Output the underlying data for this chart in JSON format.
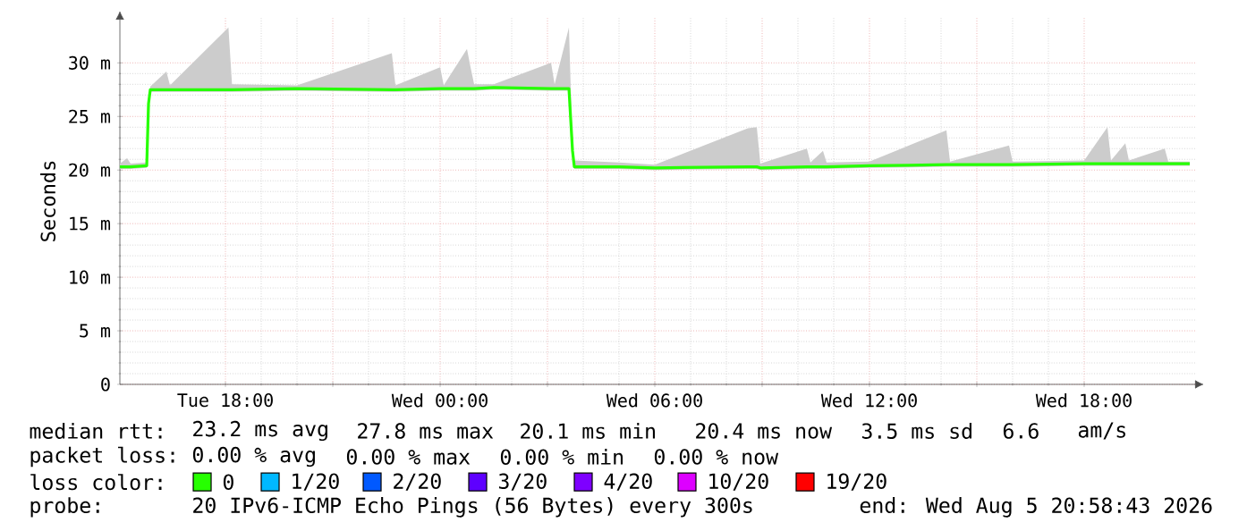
{
  "chart_data": {
    "type": "line",
    "ylabel": "Seconds",
    "x": [
      "2026-08-04T15:03",
      "2026-08-04T15:15",
      "2026-08-04T15:21",
      "2026-08-04T15:48",
      "2026-08-04T15:51",
      "2026-08-04T15:54",
      "2026-08-04T16:21",
      "2026-08-04T16:27",
      "2026-08-04T18:05",
      "2026-08-04T18:11",
      "2026-08-04T20:00",
      "2026-08-04T22:39",
      "2026-08-04T22:45",
      "2026-08-05T00:00",
      "2026-08-05T00:06",
      "2026-08-05T00:45",
      "2026-08-05T00:51",
      "2026-08-05T00:57",
      "2026-08-05T01:30",
      "2026-08-05T03:06",
      "2026-08-05T03:12",
      "2026-08-05T03:36",
      "2026-08-05T03:42",
      "2026-08-05T03:45",
      "2026-08-05T05:00",
      "2026-08-05T06:00",
      "2026-08-05T08:36",
      "2026-08-05T08:51",
      "2026-08-05T08:57",
      "2026-08-05T10:15",
      "2026-08-05T10:21",
      "2026-08-05T10:42",
      "2026-08-05T10:48",
      "2026-08-05T12:00",
      "2026-08-05T14:09",
      "2026-08-05T14:15",
      "2026-08-05T15:54",
      "2026-08-05T16:00",
      "2026-08-05T18:00",
      "2026-08-05T18:39",
      "2026-08-05T18:45",
      "2026-08-05T19:09",
      "2026-08-05T19:15",
      "2026-08-05T20:15",
      "2026-08-05T20:21",
      "2026-08-05T20:57"
    ],
    "series": [
      {
        "name": "0",
        "color": "#26ff00",
        "values": [
          20.3,
          20.3,
          20.3,
          20.4,
          26.2,
          27.5,
          27.5,
          27.5,
          27.5,
          27.5,
          27.6,
          27.5,
          27.5,
          27.6,
          27.6,
          27.6,
          27.6,
          27.6,
          27.7,
          27.6,
          27.6,
          27.6,
          21.8,
          20.3,
          20.3,
          20.2,
          20.3,
          20.3,
          20.2,
          20.3,
          20.3,
          20.3,
          20.3,
          20.4,
          20.5,
          20.5,
          20.5,
          20.5,
          20.6,
          20.6,
          20.6,
          20.6,
          20.6,
          20.6,
          20.6,
          20.6
        ],
        "lower": [
          20.1,
          20.1,
          20.1,
          20.2,
          26.0,
          27.3,
          27.3,
          27.3,
          27.3,
          27.3,
          27.4,
          27.3,
          27.3,
          27.4,
          27.4,
          27.4,
          27.4,
          27.4,
          27.5,
          27.4,
          27.4,
          27.4,
          21.6,
          20.1,
          20.1,
          20.0,
          20.1,
          20.1,
          20.0,
          20.1,
          20.1,
          20.1,
          20.1,
          20.2,
          20.3,
          20.3,
          20.3,
          20.3,
          20.4,
          20.4,
          20.4,
          20.4,
          20.4,
          20.4,
          20.4,
          20.4
        ],
        "upper": [
          20.6,
          21.1,
          20.6,
          20.7,
          26.4,
          27.8,
          29.2,
          27.9,
          33.3,
          28.0,
          27.9,
          30.9,
          27.9,
          29.6,
          27.9,
          31.3,
          29.6,
          28.0,
          28.0,
          30.0,
          28.0,
          33.3,
          22.0,
          20.9,
          20.7,
          20.5,
          23.9,
          24.0,
          20.6,
          22.0,
          20.7,
          21.8,
          20.7,
          20.8,
          23.7,
          20.8,
          22.3,
          20.8,
          20.9,
          24.0,
          20.9,
          22.5,
          20.9,
          22.0,
          20.8,
          20.8
        ]
      },
      {
        "name": "1/20",
        "color": "#00b8ff",
        "values": [
          null,
          null,
          null,
          null,
          null,
          null,
          null,
          null,
          null,
          null,
          null,
          null,
          null,
          null,
          null,
          null,
          null,
          null,
          null,
          null,
          null,
          null,
          null,
          null,
          null,
          null,
          null,
          null,
          null,
          null,
          null,
          null,
          null,
          null,
          null,
          null,
          null,
          null,
          null,
          null,
          null,
          null,
          null,
          null,
          null,
          null
        ]
      },
      {
        "name": "2/20",
        "color": "#0059ff",
        "values": [
          null,
          null,
          null,
          null,
          null,
          null,
          null,
          null,
          null,
          null,
          null,
          null,
          null,
          null,
          null,
          null,
          null,
          null,
          null,
          null,
          null,
          null,
          null,
          null,
          null,
          null,
          null,
          null,
          null,
          null,
          null,
          null,
          null,
          null,
          null,
          null,
          null,
          null,
          null,
          null,
          null,
          null,
          null,
          null,
          null,
          null
        ]
      },
      {
        "name": "3/20",
        "color": "#5e00ff",
        "values": [
          null,
          null,
          null,
          null,
          null,
          null,
          null,
          null,
          null,
          null,
          null,
          null,
          null,
          null,
          null,
          null,
          null,
          null,
          null,
          null,
          null,
          null,
          null,
          null,
          null,
          null,
          null,
          null,
          null,
          null,
          null,
          null,
          null,
          null,
          null,
          null,
          null,
          null,
          null,
          null,
          null,
          null,
          null,
          null,
          null,
          null
        ]
      },
      {
        "name": "4/20",
        "color": "#7e00ff",
        "values": [
          null,
          null,
          null,
          null,
          null,
          null,
          null,
          null,
          null,
          null,
          null,
          null,
          null,
          null,
          null,
          null,
          null,
          null,
          null,
          null,
          null,
          null,
          null,
          null,
          null,
          null,
          null,
          null,
          null,
          null,
          null,
          null,
          null,
          null,
          null,
          null,
          null,
          null,
          null,
          null,
          null,
          null,
          null,
          null,
          null,
          null
        ]
      },
      {
        "name": "10/20",
        "color": "#dd00ff",
        "values": [
          null,
          null,
          null,
          null,
          null,
          null,
          null,
          null,
          null,
          null,
          null,
          null,
          null,
          null,
          null,
          null,
          null,
          null,
          null,
          null,
          null,
          null,
          null,
          null,
          null,
          null,
          null,
          null,
          null,
          null,
          null,
          null,
          null,
          null,
          null,
          null,
          null,
          null,
          null,
          null,
          null,
          null,
          null,
          null,
          null,
          null
        ]
      },
      {
        "name": "19/20",
        "color": "#ff0000",
        "values": [
          null,
          null,
          null,
          null,
          null,
          null,
          null,
          null,
          null,
          null,
          null,
          null,
          null,
          null,
          null,
          null,
          null,
          null,
          null,
          null,
          null,
          null,
          null,
          null,
          null,
          null,
          null,
          null,
          null,
          null,
          null,
          null,
          null,
          null,
          null,
          null,
          null,
          null,
          null,
          null,
          null,
          null,
          null,
          null,
          null,
          null
        ]
      }
    ],
    "xlim": [
      "2026-08-04T15:03",
      "2026-08-05T21:09"
    ],
    "ylim": [
      0,
      34.2
    ],
    "xticks": [
      {
        "value": "2026-08-04T18:00",
        "label": "Tue 18:00"
      },
      {
        "value": "2026-08-04T21:00",
        "label": null
      },
      {
        "value": "2026-08-05T00:00",
        "label": "Wed 00:00"
      },
      {
        "value": "2026-08-05T03:00",
        "label": null
      },
      {
        "value": "2026-08-05T06:00",
        "label": "Wed 06:00"
      },
      {
        "value": "2026-08-05T09:00",
        "label": null
      },
      {
        "value": "2026-08-05T12:00",
        "label": "Wed 12:00"
      },
      {
        "value": "2026-08-05T15:00",
        "label": null
      },
      {
        "value": "2026-08-05T18:00",
        "label": "Wed 18:00"
      }
    ],
    "yticks": [
      0,
      {
        "value": 5,
        "label": "5 m"
      },
      {
        "value": 10,
        "label": "10 m"
      },
      {
        "value": 15,
        "label": "15 m"
      },
      {
        "value": 20,
        "label": "20 m"
      },
      {
        "value": 25,
        "label": "25 m"
      },
      {
        "value": 30,
        "label": "30 m"
      }
    ],
    "grid": true,
    "marker": "none",
    "line_style": "solid",
    "legend": "bottom",
    "legend_title": "loss color:",
    "annotations": [
      "median rtt:",
      "23.2 ms avg",
      "27.8 ms max",
      "20.1 ms min",
      "20.4 ms now",
      "3.5 ms sd",
      "6.6",
      "am/s",
      "packet loss:",
      "0.00 % avg",
      "0.00 % max",
      "0.00 % min",
      "0.00 % now",
      "probe:",
      "20 IPv6-ICMP Echo Pings (56 Bytes) every 300s",
      "end: Wed Aug 5 20:58:43 2026"
    ]
  }
}
